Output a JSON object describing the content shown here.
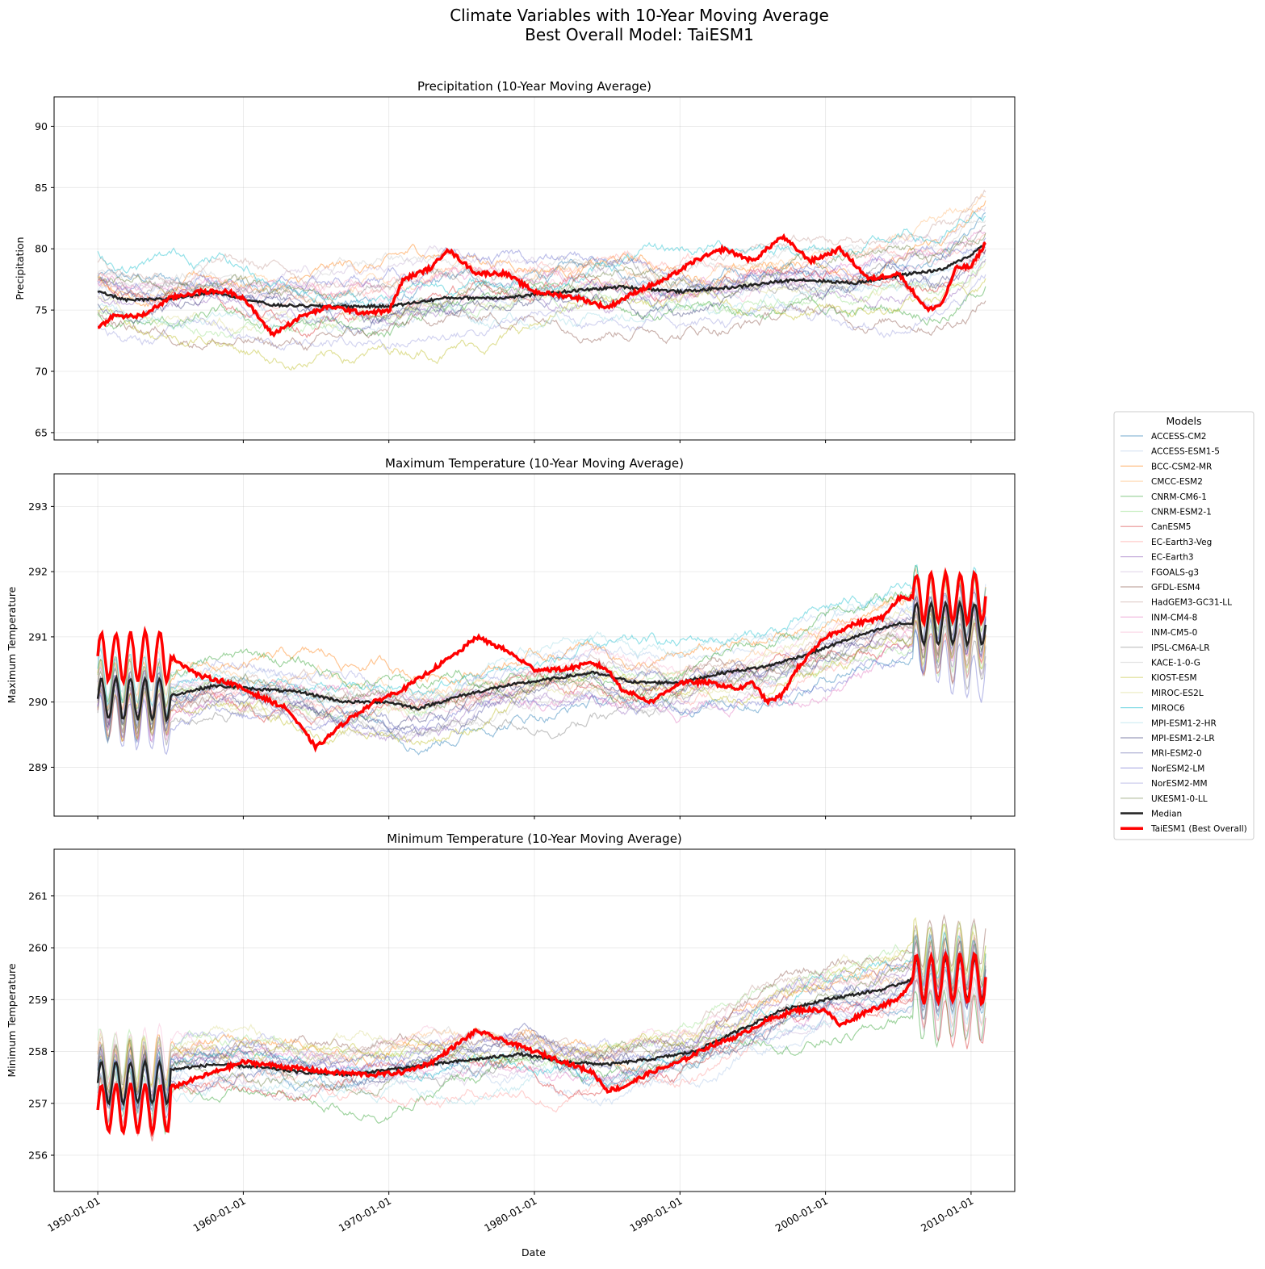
{
  "title_line1": "Climate Variables with 10-Year Moving Average",
  "title_line2": "Best Overall Model: TaiESM1",
  "xlabel": "Date",
  "x_ticks": [
    "1950-01-01",
    "1960-01-01",
    "1970-01-01",
    "1980-01-01",
    "1990-01-01",
    "2000-01-01",
    "2010-01-01"
  ],
  "legend": {
    "title": "Models",
    "placement": "right, outside plots",
    "entries": [
      {
        "label": "ACCESS-CM2",
        "color": "#1f77b4"
      },
      {
        "label": "ACCESS-ESM1-5",
        "color": "#aec7e8"
      },
      {
        "label": "BCC-CSM2-MR",
        "color": "#ff7f0e"
      },
      {
        "label": "CMCC-ESM2",
        "color": "#ffbb78"
      },
      {
        "label": "CNRM-CM6-1",
        "color": "#2ca02c"
      },
      {
        "label": "CNRM-ESM2-1",
        "color": "#98df8a"
      },
      {
        "label": "CanESM5",
        "color": "#d62728"
      },
      {
        "label": "EC-Earth3-Veg",
        "color": "#ff9896"
      },
      {
        "label": "EC-Earth3",
        "color": "#9467bd"
      },
      {
        "label": "FGOALS-g3",
        "color": "#c5b0d5"
      },
      {
        "label": "GFDL-ESM4",
        "color": "#8c564b"
      },
      {
        "label": "HadGEM3-GC31-LL",
        "color": "#c49c94"
      },
      {
        "label": "INM-CM4-8",
        "color": "#e377c2"
      },
      {
        "label": "INM-CM5-0",
        "color": "#f7b6d2"
      },
      {
        "label": "IPSL-CM6A-LR",
        "color": "#7f7f7f"
      },
      {
        "label": "KACE-1-0-G",
        "color": "#c7c7c7"
      },
      {
        "label": "KIOST-ESM",
        "color": "#bcbd22"
      },
      {
        "label": "MIROC-ES2L",
        "color": "#dbdb8d"
      },
      {
        "label": "MIROC6",
        "color": "#17becf"
      },
      {
        "label": "MPI-ESM1-2-HR",
        "color": "#9edae5"
      },
      {
        "label": "MPI-ESM1-2-LR",
        "color": "#393b79"
      },
      {
        "label": "MRI-ESM2-0",
        "color": "#5254a3"
      },
      {
        "label": "NorESM2-LM",
        "color": "#6b6ecf"
      },
      {
        "label": "NorESM2-MM",
        "color": "#9c9ede"
      },
      {
        "label": "UKESM1-0-LL",
        "color": "#637939"
      },
      {
        "label": "Median",
        "color": "#222222"
      },
      {
        "label": "TaiESM1 (Best Overall)",
        "color": "#ff0000"
      }
    ]
  },
  "chart_data": [
    {
      "type": "line",
      "title": "Precipitation (10-Year Moving Average)",
      "ylabel": "Precipitation",
      "x_range": [
        "1947-01-01",
        "2013-01-01"
      ],
      "ylim": [
        64.4,
        92.4
      ],
      "y_ticks": [
        65,
        70,
        75,
        80,
        85,
        90
      ],
      "grid": true,
      "highlight": {
        "median_x": [
          1950,
          1952,
          1955,
          1958,
          1962,
          1966,
          1970,
          1974,
          1978,
          1982,
          1986,
          1990,
          1994,
          1998,
          2002,
          2006,
          2008,
          2010,
          2011
        ],
        "median_y": [
          76.5,
          75.8,
          75.9,
          76.5,
          75.4,
          75.3,
          75.3,
          76.0,
          76.0,
          76.5,
          76.9,
          76.5,
          76.9,
          77.5,
          77.2,
          78.0,
          78.3,
          79.5,
          80.5
        ],
        "best_x": [
          1950,
          1951,
          1953,
          1955,
          1957,
          1959,
          1960,
          1962,
          1964,
          1966,
          1968,
          1970,
          1971,
          1973,
          1974,
          1976,
          1978,
          1980,
          1983,
          1985,
          1987,
          1989,
          1991,
          1993,
          1995,
          1997,
          1999,
          2001,
          2003,
          2005,
          2007,
          2008,
          2009,
          2010,
          2011
        ],
        "best_y": [
          73.5,
          74.5,
          74.5,
          76.0,
          76.5,
          76.5,
          76.0,
          73.0,
          74.5,
          75.3,
          74.8,
          74.9,
          77.5,
          78.5,
          80.0,
          78.0,
          78.0,
          76.5,
          76.0,
          75.2,
          76.5,
          77.5,
          79.0,
          80.0,
          79.0,
          81.0,
          79.0,
          80.0,
          77.5,
          78.0,
          75.0,
          75.5,
          78.5,
          78.5,
          80.5
        ]
      }
    },
    {
      "type": "line",
      "title": "Maximum Temperature (10-Year Moving Average)",
      "ylabel": "Maximum Temperature",
      "x_range": [
        "1947-01-01",
        "2013-01-01"
      ],
      "ylim": [
        288.25,
        293.5
      ],
      "y_ticks": [
        289,
        290,
        291,
        292,
        293
      ],
      "grid": true,
      "highlight": {
        "median_x": [
          1955,
          1958,
          1961,
          1964,
          1967,
          1970,
          1972,
          1975,
          1978,
          1981,
          1984,
          1987,
          1990,
          1993,
          1996,
          1999,
          2002,
          2005
        ],
        "median_y": [
          290.1,
          290.25,
          290.2,
          290.15,
          290.0,
          290.0,
          289.9,
          290.1,
          290.25,
          290.35,
          290.45,
          290.3,
          290.3,
          290.45,
          290.55,
          290.75,
          291.0,
          291.2
        ],
        "best_x": [
          1955,
          1957,
          1959,
          1961,
          1963,
          1964,
          1965,
          1967,
          1969,
          1971,
          1973,
          1975,
          1976,
          1978,
          1980,
          1982,
          1984,
          1985,
          1986,
          1988,
          1990,
          1992,
          1994,
          1995,
          1996,
          1997,
          1998,
          2000,
          2002,
          2004,
          2005
        ],
        "best_y": [
          290.7,
          290.4,
          290.3,
          290.1,
          289.9,
          289.6,
          289.3,
          289.7,
          290.0,
          290.2,
          290.5,
          290.8,
          291.0,
          290.8,
          290.5,
          290.5,
          290.6,
          290.5,
          290.2,
          290.0,
          290.3,
          290.3,
          290.2,
          290.3,
          290.0,
          290.1,
          290.5,
          291.0,
          291.2,
          291.3,
          291.6
        ]
      }
    },
    {
      "type": "line",
      "title": "Minimum Temperature (10-Year Moving Average)",
      "ylabel": "Minimum Temperature",
      "x_range": [
        "1947-01-01",
        "2013-01-01"
      ],
      "ylim": [
        255.3,
        261.9
      ],
      "y_ticks": [
        256,
        257,
        258,
        259,
        260,
        261
      ],
      "grid": true,
      "highlight": {
        "median_x": [
          1955,
          1958,
          1961,
          1964,
          1967,
          1970,
          1973,
          1976,
          1979,
          1982,
          1985,
          1988,
          1991,
          1994,
          1997,
          2000,
          2002,
          2004,
          2006
        ],
        "median_y": [
          257.65,
          257.75,
          257.7,
          257.6,
          257.55,
          257.65,
          257.75,
          257.85,
          257.95,
          257.8,
          257.75,
          257.85,
          258.0,
          258.4,
          258.8,
          259.0,
          259.1,
          259.2,
          259.4
        ],
        "best_x": [
          1955,
          1957,
          1960,
          1963,
          1966,
          1969,
          1971,
          1973,
          1975,
          1976,
          1978,
          1980,
          1982,
          1984,
          1985,
          1986,
          1988,
          1990,
          1992,
          1994,
          1996,
          1998,
          2000,
          2001,
          2003,
          2005,
          2006
        ],
        "best_y": [
          257.3,
          257.5,
          257.8,
          257.7,
          257.6,
          257.55,
          257.6,
          257.8,
          258.2,
          258.4,
          258.2,
          258.0,
          257.8,
          257.6,
          257.25,
          257.3,
          257.6,
          257.8,
          258.1,
          258.3,
          258.6,
          258.8,
          258.8,
          258.5,
          258.8,
          259.0,
          259.4
        ]
      }
    }
  ]
}
